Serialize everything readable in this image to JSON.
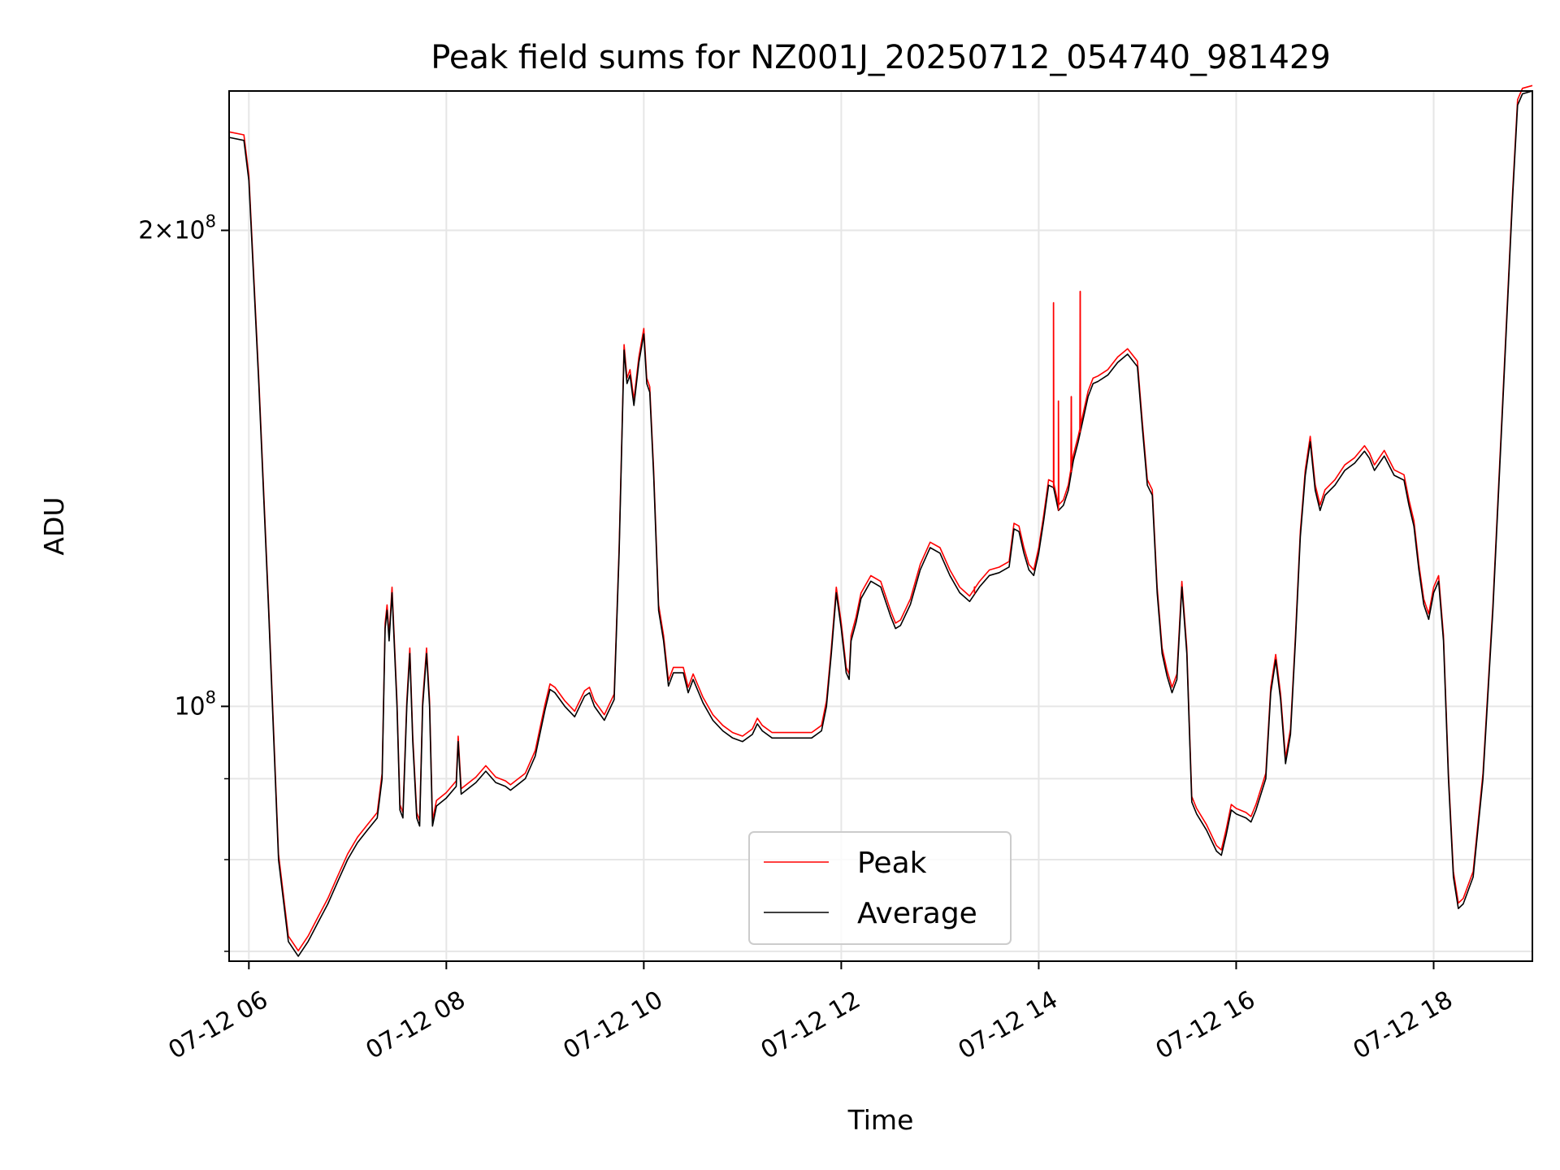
{
  "chart_data": {
    "type": "line",
    "title": "Peak field sums for NZ001J_20250712_054740_981429",
    "xlabel": "Time",
    "ylabel": "ADU",
    "x_unit": "hours on 2025-07-12",
    "x_tick_values": [
      6,
      8,
      10,
      12,
      14,
      16,
      18
    ],
    "x_tick_labels": [
      "07-12 06",
      "07-12 08",
      "07-12 10",
      "07-12 12",
      "07-12 14",
      "07-12 16",
      "07-12 18"
    ],
    "xlim": [
      5.8,
      19.0
    ],
    "y_scale": "log",
    "ylim": [
      69000000,
      245000000
    ],
    "y_major_ticks": [
      100000000,
      200000000
    ],
    "y_minor_ticks": [
      70000000,
      80000000,
      90000000
    ],
    "y_tick_labels": [
      "10^8",
      "2×10^8"
    ],
    "grid": true,
    "legend_position": "lower center",
    "series": [
      {
        "name": "Average",
        "color": "#000000",
        "points": [
          [
            5.8,
            229000000
          ],
          [
            5.95,
            228000000
          ],
          [
            6.0,
            215000000
          ],
          [
            6.1,
            160000000
          ],
          [
            6.2,
            115000000
          ],
          [
            6.3,
            80000000
          ],
          [
            6.4,
            71000000
          ],
          [
            6.5,
            69500000
          ],
          [
            6.6,
            71000000
          ],
          [
            6.7,
            73000000
          ],
          [
            6.8,
            75000000
          ],
          [
            6.9,
            77500000
          ],
          [
            7.0,
            80000000
          ],
          [
            7.1,
            82000000
          ],
          [
            7.2,
            83500000
          ],
          [
            7.3,
            85000000
          ],
          [
            7.35,
            90000000
          ],
          [
            7.38,
            112000000
          ],
          [
            7.4,
            115000000
          ],
          [
            7.42,
            110000000
          ],
          [
            7.45,
            118000000
          ],
          [
            7.5,
            100000000
          ],
          [
            7.53,
            86000000
          ],
          [
            7.56,
            85000000
          ],
          [
            7.6,
            100000000
          ],
          [
            7.63,
            108000000
          ],
          [
            7.66,
            95000000
          ],
          [
            7.7,
            85000000
          ],
          [
            7.73,
            84000000
          ],
          [
            7.76,
            100000000
          ],
          [
            7.8,
            108000000
          ],
          [
            7.83,
            100000000
          ],
          [
            7.86,
            84000000
          ],
          [
            7.9,
            86500000
          ],
          [
            8.0,
            87500000
          ],
          [
            8.1,
            89000000
          ],
          [
            8.12,
            95000000
          ],
          [
            8.15,
            88000000
          ],
          [
            8.3,
            89500000
          ],
          [
            8.4,
            91000000
          ],
          [
            8.5,
            89500000
          ],
          [
            8.6,
            89000000
          ],
          [
            8.65,
            88500000
          ],
          [
            8.7,
            89000000
          ],
          [
            8.8,
            90000000
          ],
          [
            8.9,
            93000000
          ],
          [
            9.0,
            99500000
          ],
          [
            9.05,
            102500000
          ],
          [
            9.1,
            102000000
          ],
          [
            9.2,
            100000000
          ],
          [
            9.3,
            98500000
          ],
          [
            9.4,
            101500000
          ],
          [
            9.45,
            102000000
          ],
          [
            9.5,
            100000000
          ],
          [
            9.6,
            98000000
          ],
          [
            9.7,
            101000000
          ],
          [
            9.75,
            125000000
          ],
          [
            9.8,
            168000000
          ],
          [
            9.83,
            160000000
          ],
          [
            9.86,
            162000000
          ],
          [
            9.9,
            155000000
          ],
          [
            9.95,
            165000000
          ],
          [
            10.0,
            172000000
          ],
          [
            10.03,
            160000000
          ],
          [
            10.06,
            158000000
          ],
          [
            10.1,
            140000000
          ],
          [
            10.15,
            115000000
          ],
          [
            10.2,
            110000000
          ],
          [
            10.25,
            103000000
          ],
          [
            10.3,
            105000000
          ],
          [
            10.4,
            105000000
          ],
          [
            10.45,
            102000000
          ],
          [
            10.5,
            104000000
          ],
          [
            10.6,
            100500000
          ],
          [
            10.7,
            98000000
          ],
          [
            10.8,
            96500000
          ],
          [
            10.9,
            95500000
          ],
          [
            11.0,
            95000000
          ],
          [
            11.1,
            96000000
          ],
          [
            11.15,
            97500000
          ],
          [
            11.2,
            96500000
          ],
          [
            11.3,
            95500000
          ],
          [
            11.4,
            95500000
          ],
          [
            11.5,
            95500000
          ],
          [
            11.6,
            95500000
          ],
          [
            11.7,
            95500000
          ],
          [
            11.8,
            96500000
          ],
          [
            11.85,
            100000000
          ],
          [
            11.9,
            108000000
          ],
          [
            11.95,
            118000000
          ],
          [
            12.0,
            112000000
          ],
          [
            12.05,
            105000000
          ],
          [
            12.08,
            104000000
          ],
          [
            12.1,
            110000000
          ],
          [
            12.15,
            113000000
          ],
          [
            12.2,
            117000000
          ],
          [
            12.3,
            120000000
          ],
          [
            12.4,
            119000000
          ],
          [
            12.5,
            114000000
          ],
          [
            12.55,
            112000000
          ],
          [
            12.6,
            112500000
          ],
          [
            12.7,
            116000000
          ],
          [
            12.8,
            122000000
          ],
          [
            12.9,
            126000000
          ],
          [
            13.0,
            125000000
          ],
          [
            13.1,
            121000000
          ],
          [
            13.2,
            118000000
          ],
          [
            13.3,
            116500000
          ],
          [
            13.4,
            119000000
          ],
          [
            13.5,
            121000000
          ],
          [
            13.6,
            121500000
          ],
          [
            13.7,
            122500000
          ],
          [
            13.75,
            129500000
          ],
          [
            13.8,
            129000000
          ],
          [
            13.85,
            125000000
          ],
          [
            13.9,
            122000000
          ],
          [
            13.95,
            121000000
          ],
          [
            14.0,
            125000000
          ],
          [
            14.05,
            131000000
          ],
          [
            14.1,
            138000000
          ],
          [
            14.15,
            137500000
          ],
          [
            14.2,
            133000000
          ],
          [
            14.25,
            134000000
          ],
          [
            14.3,
            137000000
          ],
          [
            14.35,
            143000000
          ],
          [
            14.4,
            147000000
          ],
          [
            14.5,
            157000000
          ],
          [
            14.55,
            160000000
          ],
          [
            14.6,
            160500000
          ],
          [
            14.7,
            162000000
          ],
          [
            14.8,
            165000000
          ],
          [
            14.9,
            167000000
          ],
          [
            15.0,
            164000000
          ],
          [
            15.05,
            150000000
          ],
          [
            15.1,
            138000000
          ],
          [
            15.15,
            136000000
          ],
          [
            15.2,
            118000000
          ],
          [
            15.25,
            108000000
          ],
          [
            15.3,
            104500000
          ],
          [
            15.35,
            102000000
          ],
          [
            15.4,
            104000000
          ],
          [
            15.45,
            119000000
          ],
          [
            15.5,
            108000000
          ],
          [
            15.55,
            87000000
          ],
          [
            15.6,
            85500000
          ],
          [
            15.7,
            83500000
          ],
          [
            15.8,
            81000000
          ],
          [
            15.85,
            80500000
          ],
          [
            15.9,
            83000000
          ],
          [
            15.95,
            86000000
          ],
          [
            16.0,
            85500000
          ],
          [
            16.1,
            85000000
          ],
          [
            16.15,
            84500000
          ],
          [
            16.2,
            86000000
          ],
          [
            16.3,
            90000000
          ],
          [
            16.35,
            102000000
          ],
          [
            16.4,
            107000000
          ],
          [
            16.45,
            101000000
          ],
          [
            16.5,
            92000000
          ],
          [
            16.55,
            96000000
          ],
          [
            16.6,
            110000000
          ],
          [
            16.65,
            128000000
          ],
          [
            16.7,
            140000000
          ],
          [
            16.75,
            147000000
          ],
          [
            16.8,
            137000000
          ],
          [
            16.85,
            133000000
          ],
          [
            16.9,
            136000000
          ],
          [
            17.0,
            138000000
          ],
          [
            17.1,
            141000000
          ],
          [
            17.2,
            142500000
          ],
          [
            17.3,
            145000000
          ],
          [
            17.35,
            143500000
          ],
          [
            17.4,
            141000000
          ],
          [
            17.5,
            144000000
          ],
          [
            17.6,
            140000000
          ],
          [
            17.7,
            139000000
          ],
          [
            17.75,
            134000000
          ],
          [
            17.8,
            130000000
          ],
          [
            17.85,
            122000000
          ],
          [
            17.9,
            116000000
          ],
          [
            17.95,
            113500000
          ],
          [
            18.0,
            118000000
          ],
          [
            18.05,
            120000000
          ],
          [
            18.1,
            110000000
          ],
          [
            18.15,
            90000000
          ],
          [
            18.2,
            78000000
          ],
          [
            18.25,
            74500000
          ],
          [
            18.3,
            75000000
          ],
          [
            18.4,
            78000000
          ],
          [
            18.5,
            90000000
          ],
          [
            18.6,
            115000000
          ],
          [
            18.7,
            155000000
          ],
          [
            18.8,
            210000000
          ],
          [
            18.85,
            240000000
          ],
          [
            18.9,
            244000000
          ],
          [
            19.0,
            245000000
          ]
        ]
      },
      {
        "name": "Peak",
        "color": "#ff0000",
        "spikes": [
          [
            13.35,
            119000000
          ],
          [
            14.15,
            180000000
          ],
          [
            14.2,
            156000000
          ],
          [
            14.33,
            157000000
          ],
          [
            14.42,
            183000000
          ]
        ]
      }
    ]
  }
}
